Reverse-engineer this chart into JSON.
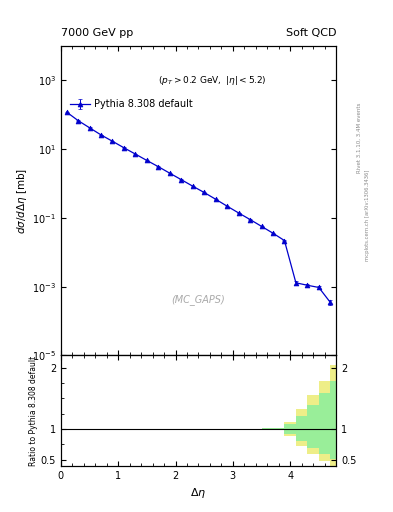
{
  "title_left": "7000 GeV pp",
  "title_right": "Soft QCD",
  "watermark": "(MC_GAPS)",
  "ylabel_main": "$d\\sigma/d\\Delta\\eta$ [mb]",
  "ylabel_ratio": "Ratio to Pythia 8.308 default",
  "xlabel": "$\\Delta\\eta$",
  "right_label": "mcplots.cern.ch [arXiv:1306.3436]",
  "right_label2": "Rivet 3.1.10, 3.4M events",
  "legend_label": "Pythia 8.308 default",
  "line_color": "#0000cc",
  "x_data": [
    0.1,
    0.3,
    0.5,
    0.7,
    0.9,
    1.1,
    1.3,
    1.5,
    1.7,
    1.9,
    2.1,
    2.3,
    2.5,
    2.7,
    2.9,
    3.1,
    3.3,
    3.5,
    3.7,
    3.9,
    4.1,
    4.3,
    4.5,
    4.7
  ],
  "y_data": [
    120,
    68,
    42,
    26,
    17,
    11,
    7.2,
    4.7,
    3.1,
    2.0,
    1.3,
    0.84,
    0.55,
    0.35,
    0.22,
    0.14,
    0.09,
    0.057,
    0.036,
    0.022,
    0.0013,
    0.0011,
    0.00095,
    0.00035
  ],
  "y_err_lo": [
    4,
    2,
    1.2,
    0.7,
    0.5,
    0.35,
    0.22,
    0.14,
    0.09,
    0.06,
    0.04,
    0.025,
    0.016,
    0.01,
    0.007,
    0.004,
    0.003,
    0.002,
    0.0012,
    0.0007,
    0.00015,
    0.00012,
    0.0001,
    5e-05
  ],
  "y_err_hi": [
    4,
    2,
    1.2,
    0.7,
    0.5,
    0.35,
    0.22,
    0.14,
    0.09,
    0.06,
    0.04,
    0.025,
    0.016,
    0.01,
    0.007,
    0.004,
    0.003,
    0.002,
    0.0012,
    0.0007,
    0.00015,
    0.00012,
    0.0001,
    5e-05
  ],
  "xlim": [
    0,
    4.8
  ],
  "ylim_main": [
    1e-05,
    10000.0
  ],
  "ylim_ratio": [
    0.4,
    2.2
  ],
  "background_color": "#ffffff",
  "green_color": "#99ee99",
  "yellow_color": "#eeee88",
  "ratio_band_x": [
    0.0,
    2.5,
    3.0,
    3.5,
    3.9,
    4.1,
    4.3,
    4.5,
    4.7,
    4.8
  ],
  "ratio_yellow_lo": [
    1.0,
    1.0,
    1.0,
    0.98,
    0.88,
    0.72,
    0.6,
    0.48,
    0.38,
    0.35
  ],
  "ratio_yellow_hi": [
    1.0,
    1.0,
    1.0,
    1.02,
    1.12,
    1.32,
    1.55,
    1.78,
    2.05,
    2.15
  ],
  "ratio_green_lo": [
    1.0,
    1.0,
    1.0,
    0.99,
    0.92,
    0.8,
    0.7,
    0.6,
    0.52,
    0.48
  ],
  "ratio_green_hi": [
    1.0,
    1.0,
    1.0,
    1.01,
    1.08,
    1.22,
    1.4,
    1.58,
    1.78,
    1.9
  ]
}
